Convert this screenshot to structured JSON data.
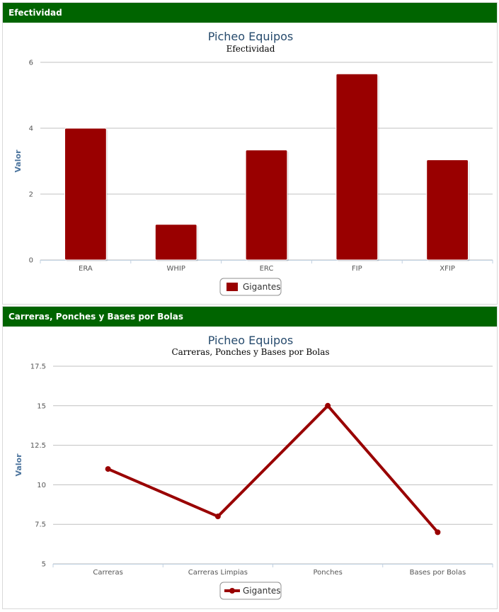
{
  "panels": [
    {
      "header": "Efectividad"
    },
    {
      "header": "Carreras, Ponches y Bases por Bolas"
    }
  ],
  "colors": {
    "header_bg": "#006400",
    "series": "#990000",
    "grid": "#c0c0c0"
  },
  "chart_data": [
    {
      "type": "bar",
      "title": "Picheo Equipos",
      "subtitle": "Efectividad",
      "ylabel": "Valor",
      "xlabel": "",
      "categories": [
        "ERA",
        "WHIP",
        "ERC",
        "FIP",
        "XFIP"
      ],
      "series": [
        {
          "name": "Gigantes",
          "values": [
            4.0,
            1.08,
            3.34,
            5.65,
            3.04
          ]
        }
      ],
      "ylim": [
        0,
        6
      ],
      "yticks": [
        "0",
        "2",
        "4",
        "6"
      ],
      "grid": true,
      "legend": "bottom-center"
    },
    {
      "type": "line",
      "title": "Picheo Equipos",
      "subtitle": "Carreras, Ponches y Bases por Bolas",
      "ylabel": "Valor",
      "xlabel": "",
      "categories": [
        "Carreras",
        "Carreras Limpias",
        "Ponches",
        "Bases por Bolas"
      ],
      "series": [
        {
          "name": "Gigantes",
          "values": [
            11,
            8,
            15,
            7
          ]
        }
      ],
      "ylim": [
        5,
        17.5
      ],
      "yticks": [
        "5",
        "7.5",
        "10",
        "12.5",
        "15",
        "17.5"
      ],
      "grid": true,
      "legend": "bottom-center"
    }
  ]
}
